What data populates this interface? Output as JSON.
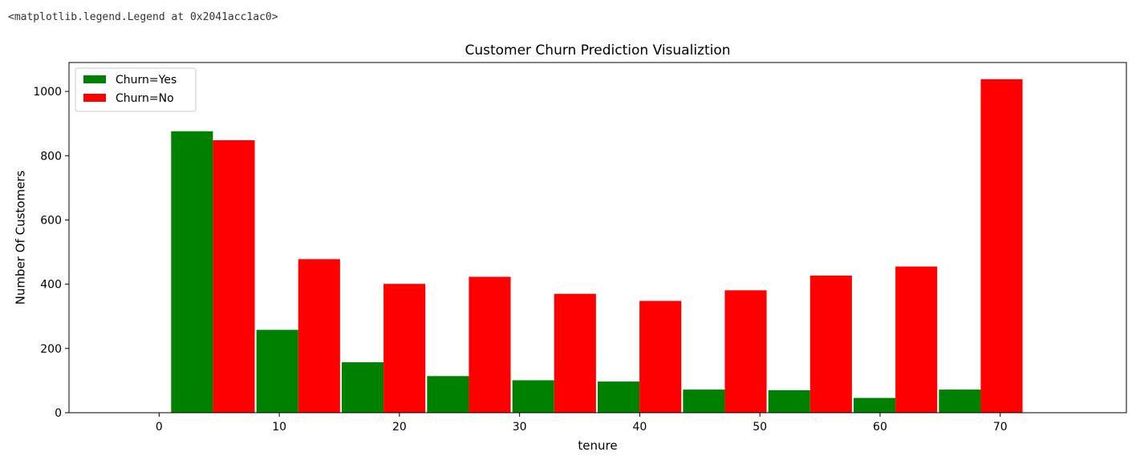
{
  "output_text": "<matplotlib.legend.Legend at 0x2041acc1ac0>",
  "chart_data": {
    "type": "bar",
    "title": "Customer Churn Prediction Visualiztion",
    "xlabel": "tenure",
    "ylabel": "Number Of Customers",
    "xlim": [
      -7.5,
      80.5
    ],
    "ylim": [
      0,
      1090
    ],
    "xticks": [
      0,
      10,
      20,
      30,
      40,
      50,
      60,
      70
    ],
    "yticks": [
      0,
      200,
      400,
      600,
      800,
      1000
    ],
    "bin_edges": [
      1.0,
      8.1,
      15.2,
      22.3,
      29.4,
      36.5,
      43.6,
      50.7,
      57.8,
      64.9,
      72.0
    ],
    "grid": false,
    "legend_position": "top-left",
    "series": [
      {
        "name": "Churn=Yes",
        "color": "#008000",
        "values": [
          876,
          258,
          157,
          114,
          101,
          97,
          72,
          70,
          46,
          72
        ]
      },
      {
        "name": "Churn=No",
        "color": "#ff0000",
        "values": [
          848,
          478,
          401,
          423,
          370,
          348,
          381,
          427,
          455,
          1038
        ]
      }
    ]
  }
}
